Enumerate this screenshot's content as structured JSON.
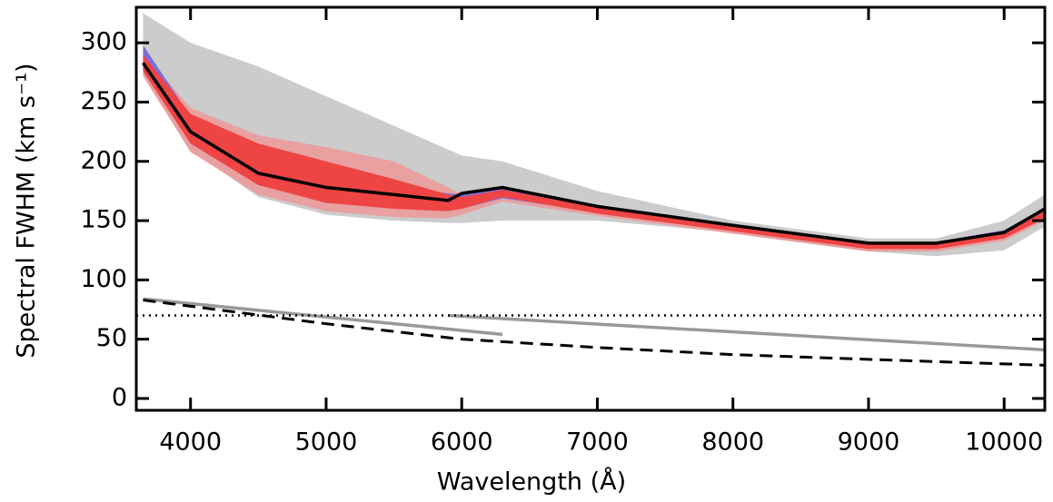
{
  "chart_data": {
    "type": "line",
    "xlabel": "Wavelength (Å)",
    "ylabel": "Spectral FWHM (km s⁻¹)",
    "xlim": [
      3600,
      10300
    ],
    "ylim": [
      -10,
      330
    ],
    "xticks": [
      4000,
      5000,
      6000,
      7000,
      8000,
      9000,
      10000
    ],
    "yticks": [
      0,
      50,
      100,
      150,
      200,
      250,
      300
    ],
    "bands": [
      {
        "color": "#cccccc",
        "x": [
          3650,
          4000,
          4500,
          5000,
          5500,
          5900,
          6000,
          6300,
          7000,
          8000,
          9000,
          9500,
          10000,
          10300
        ],
        "upper": [
          325,
          300,
          280,
          255,
          230,
          210,
          205,
          200,
          175,
          150,
          135,
          135,
          150,
          172
        ],
        "lower": [
          275,
          210,
          170,
          155,
          150,
          148,
          148,
          150,
          150,
          140,
          124,
          120,
          125,
          145
        ]
      },
      {
        "color": "#e8a0a0",
        "x": [
          3650,
          4000,
          4500,
          5000,
          5500,
          5900,
          6000,
          6300,
          7000,
          8000,
          9000,
          9500,
          10000,
          10300
        ],
        "upper": [
          292,
          245,
          222,
          212,
          200,
          178,
          172,
          178,
          162,
          147,
          131,
          131,
          141,
          160
        ],
        "lower": [
          272,
          208,
          172,
          158,
          153,
          152,
          155,
          166,
          154,
          139,
          124,
          124,
          133,
          150
        ]
      },
      {
        "color": "#7b6fd6",
        "x": [
          3650,
          4000,
          4500,
          5000,
          5500,
          5900,
          6000,
          6300,
          7000,
          8000,
          9000,
          9500,
          10000,
          10300
        ],
        "upper": [
          298,
          238,
          200,
          185,
          178,
          173,
          172,
          177,
          163,
          147,
          132,
          132,
          142,
          161
        ],
        "lower": [
          278,
          218,
          180,
          168,
          163,
          160,
          160,
          169,
          157,
          142,
          127,
          127,
          137,
          154
        ]
      },
      {
        "color": "#ee4444",
        "x": [
          3650,
          4000,
          4500,
          5000,
          5500,
          5900,
          6000,
          6300,
          7000,
          8000,
          9000,
          9500,
          10000,
          10300
        ],
        "upper": [
          290,
          240,
          215,
          200,
          185,
          172,
          170,
          176,
          161,
          146,
          130,
          130,
          140,
          158
        ],
        "lower": [
          276,
          215,
          180,
          165,
          160,
          158,
          160,
          170,
          156,
          141,
          126,
          126,
          135,
          152
        ]
      }
    ],
    "series": [
      {
        "color": "#000000",
        "style": "solid",
        "width": 3.5,
        "x": [
          3650,
          4000,
          4500,
          5000,
          5500,
          5900,
          6000,
          6300,
          7000,
          8000,
          9000,
          9500,
          10000,
          10300
        ],
        "values": [
          283,
          225,
          190,
          178,
          172,
          167,
          173,
          178,
          162,
          146,
          131,
          131,
          140,
          160
        ]
      },
      {
        "color": "#999999",
        "style": "solid",
        "width": 3.5,
        "x": [
          3650,
          6300
        ],
        "values": [
          84,
          54
        ]
      },
      {
        "color": "#999999",
        "style": "solid",
        "width": 3.5,
        "x": [
          5900,
          10300
        ],
        "values": [
          70,
          41
        ]
      },
      {
        "color": "#000000",
        "style": "dashed",
        "width": 3,
        "x": [
          3650,
          5000,
          6000,
          7000,
          8000,
          9000,
          10300
        ],
        "values": [
          83,
          63,
          50,
          43,
          37,
          33,
          28
        ]
      },
      {
        "color": "#000000",
        "style": "dotted",
        "width": 2.5,
        "x": [
          3600,
          10300
        ],
        "values": [
          70,
          70
        ]
      }
    ]
  }
}
